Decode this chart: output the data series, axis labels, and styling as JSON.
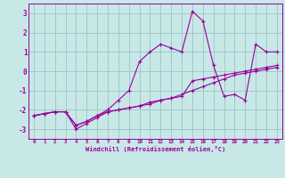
{
  "xlabel": "Windchill (Refroidissement éolien,°C)",
  "xlim": [
    -0.5,
    23.5
  ],
  "ylim": [
    -3.5,
    3.5
  ],
  "yticks": [
    -3,
    -2,
    -1,
    0,
    1,
    2,
    3
  ],
  "xticks": [
    0,
    1,
    2,
    3,
    4,
    5,
    6,
    7,
    8,
    9,
    10,
    11,
    12,
    13,
    14,
    15,
    16,
    17,
    18,
    19,
    20,
    21,
    22,
    23
  ],
  "bg_color": "#c8e8e8",
  "line_color": "#990099",
  "grid_color": "#a0c8c8",
  "line1_x": [
    0,
    1,
    2,
    3,
    4,
    5,
    6,
    7,
    8,
    9,
    10,
    11,
    12,
    13,
    14,
    15,
    16,
    17,
    18,
    19,
    20,
    21,
    22,
    23
  ],
  "line1_y": [
    -2.3,
    -2.2,
    -2.1,
    -2.1,
    -3.0,
    -2.7,
    -2.4,
    -2.1,
    -2.0,
    -1.9,
    -1.8,
    -1.6,
    -1.5,
    -1.4,
    -1.2,
    -1.0,
    -0.8,
    -0.6,
    -0.4,
    -0.2,
    -0.1,
    0.0,
    0.1,
    0.2
  ],
  "line2_x": [
    0,
    1,
    2,
    3,
    4,
    5,
    6,
    7,
    8,
    9,
    10,
    11,
    12,
    13,
    14,
    15,
    16,
    17,
    18,
    19,
    20,
    21,
    22,
    23
  ],
  "line2_y": [
    -2.3,
    -2.2,
    -2.1,
    -2.1,
    -2.8,
    -2.6,
    -2.3,
    -2.0,
    -1.5,
    -1.0,
    0.5,
    1.0,
    1.4,
    1.2,
    1.0,
    3.1,
    2.6,
    0.3,
    -1.3,
    -1.2,
    -1.5,
    1.4,
    1.0,
    1.0
  ],
  "line3_x": [
    0,
    1,
    2,
    3,
    4,
    5,
    6,
    7,
    8,
    9,
    10,
    11,
    12,
    13,
    14,
    15,
    16,
    17,
    18,
    19,
    20,
    21,
    22,
    23
  ],
  "line3_y": [
    -2.3,
    -2.2,
    -2.1,
    -2.1,
    -2.8,
    -2.6,
    -2.3,
    -2.1,
    -2.0,
    -1.9,
    -1.8,
    -1.7,
    -1.5,
    -1.4,
    -1.3,
    -0.5,
    -0.4,
    -0.3,
    -0.2,
    -0.1,
    0.0,
    0.1,
    0.2,
    0.3
  ]
}
